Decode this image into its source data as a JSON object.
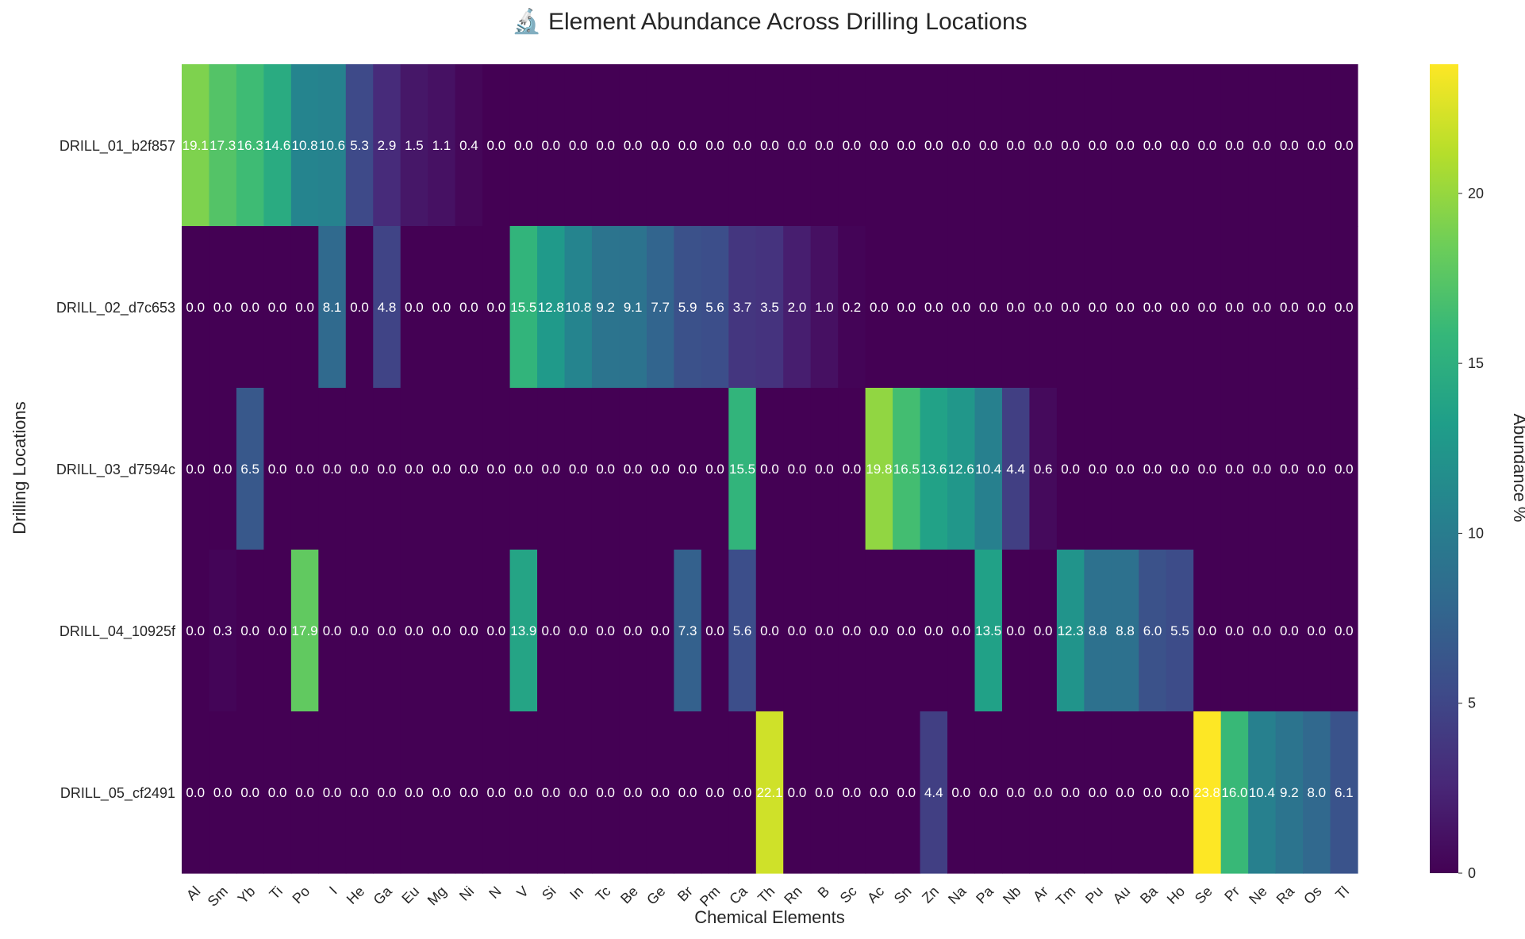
{
  "chart_data": {
    "type": "heatmap",
    "title": "🔬 Element Abundance Across Drilling Locations",
    "xlabel": "Chemical Elements",
    "ylabel": "Drilling Locations",
    "colorbar_label": "Abundance %",
    "colorbar_ticks": [
      0,
      5,
      10,
      15,
      20
    ],
    "vmin": 0,
    "vmax": 23.8,
    "colormap": "viridis",
    "x": [
      "Al",
      "Sm",
      "Yb",
      "Ti",
      "Po",
      "I",
      "He",
      "Ga",
      "Eu",
      "Mg",
      "Ni",
      "N",
      "V",
      "Si",
      "In",
      "Tc",
      "Be",
      "Ge",
      "Br",
      "Pm",
      "Ca",
      "Th",
      "Rn",
      "B",
      "Sc",
      "Ac",
      "Sn",
      "Zn",
      "Na",
      "Pa",
      "Nb",
      "Ar",
      "Tm",
      "Pu",
      "Au",
      "Ba",
      "Ho",
      "Se",
      "Pr",
      "Ne",
      "Ra",
      "Os",
      "Tl"
    ],
    "y": [
      "DRILL_01_b2f857",
      "DRILL_02_d7c653",
      "DRILL_03_d7594c",
      "DRILL_04_10925f",
      "DRILL_05_cf2491"
    ],
    "values": [
      [
        19.1,
        17.3,
        16.3,
        14.6,
        10.8,
        10.6,
        5.3,
        2.9,
        1.5,
        1.1,
        0.4,
        0.0,
        0.0,
        0.0,
        0.0,
        0.0,
        0.0,
        0.0,
        0.0,
        0.0,
        0.0,
        0.0,
        0.0,
        0.0,
        0.0,
        0.0,
        0.0,
        0.0,
        0.0,
        0.0,
        0.0,
        0.0,
        0.0,
        0.0,
        0.0,
        0.0,
        0.0,
        0.0,
        0.0,
        0.0,
        0.0,
        0.0,
        0.0
      ],
      [
        0.0,
        0.0,
        0.0,
        0.0,
        0.0,
        8.1,
        0.0,
        4.8,
        0.0,
        0.0,
        0.0,
        0.0,
        15.5,
        12.8,
        10.8,
        9.2,
        9.1,
        7.7,
        5.9,
        5.6,
        3.7,
        3.5,
        2.0,
        1.0,
        0.2,
        0.0,
        0.0,
        0.0,
        0.0,
        0.0,
        0.0,
        0.0,
        0.0,
        0.0,
        0.0,
        0.0,
        0.0,
        0.0,
        0.0,
        0.0,
        0.0,
        0.0,
        0.0
      ],
      [
        0.0,
        0.0,
        6.5,
        0.0,
        0.0,
        0.0,
        0.0,
        0.0,
        0.0,
        0.0,
        0.0,
        0.0,
        0.0,
        0.0,
        0.0,
        0.0,
        0.0,
        0.0,
        0.0,
        0.0,
        15.5,
        0.0,
        0.0,
        0.0,
        0.0,
        19.8,
        16.5,
        13.6,
        12.6,
        10.4,
        4.4,
        0.6,
        0.0,
        0.0,
        0.0,
        0.0,
        0.0,
        0.0,
        0.0,
        0.0,
        0.0,
        0.0,
        0.0
      ],
      [
        0.0,
        0.3,
        0.0,
        0.0,
        17.9,
        0.0,
        0.0,
        0.0,
        0.0,
        0.0,
        0.0,
        0.0,
        13.9,
        0.0,
        0.0,
        0.0,
        0.0,
        0.0,
        7.3,
        0.0,
        5.6,
        0.0,
        0.0,
        0.0,
        0.0,
        0.0,
        0.0,
        0.0,
        0.0,
        13.5,
        0.0,
        0.0,
        12.3,
        8.8,
        8.8,
        6.0,
        5.5,
        0.0,
        0.0,
        0.0,
        0.0,
        0.0,
        0.0
      ],
      [
        0.0,
        0.0,
        0.0,
        0.0,
        0.0,
        0.0,
        0.0,
        0.0,
        0.0,
        0.0,
        0.0,
        0.0,
        0.0,
        0.0,
        0.0,
        0.0,
        0.0,
        0.0,
        0.0,
        0.0,
        0.0,
        22.1,
        0.0,
        0.0,
        0.0,
        0.0,
        0.0,
        4.4,
        0.0,
        0.0,
        0.0,
        0.0,
        0.0,
        0.0,
        0.0,
        0.0,
        0.0,
        23.8,
        16.0,
        10.4,
        9.2,
        8.0,
        6.1
      ]
    ]
  }
}
